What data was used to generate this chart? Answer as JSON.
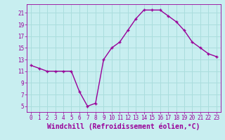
{
  "x": [
    0,
    1,
    2,
    3,
    4,
    5,
    6,
    7,
    8,
    9,
    10,
    11,
    12,
    13,
    14,
    15,
    16,
    17,
    18,
    19,
    20,
    21,
    22,
    23
  ],
  "y": [
    12.0,
    11.5,
    11.0,
    11.0,
    11.0,
    11.0,
    7.5,
    5.0,
    5.5,
    13.0,
    15.0,
    16.0,
    18.0,
    20.0,
    21.5,
    21.5,
    21.5,
    20.5,
    19.5,
    18.0,
    16.0,
    15.0,
    14.0,
    13.5
  ],
  "xlabel": "Windchill (Refroidissement éolien,°C)",
  "line_color": "#990099",
  "marker": "+",
  "marker_size": 3,
  "marker_color": "#990099",
  "background_color": "#c8eef0",
  "grid_color": "#aadddd",
  "xlim": [
    -0.5,
    23.5
  ],
  "ylim": [
    4.0,
    22.5
  ],
  "xticks": [
    0,
    1,
    2,
    3,
    4,
    5,
    6,
    7,
    8,
    9,
    10,
    11,
    12,
    13,
    14,
    15,
    16,
    17,
    18,
    19,
    20,
    21,
    22,
    23
  ],
  "yticks": [
    5,
    7,
    9,
    11,
    13,
    15,
    17,
    19,
    21
  ],
  "tick_color": "#990099",
  "tick_fontsize": 5.5,
  "xlabel_fontsize": 7.0,
  "line_width": 1.0
}
